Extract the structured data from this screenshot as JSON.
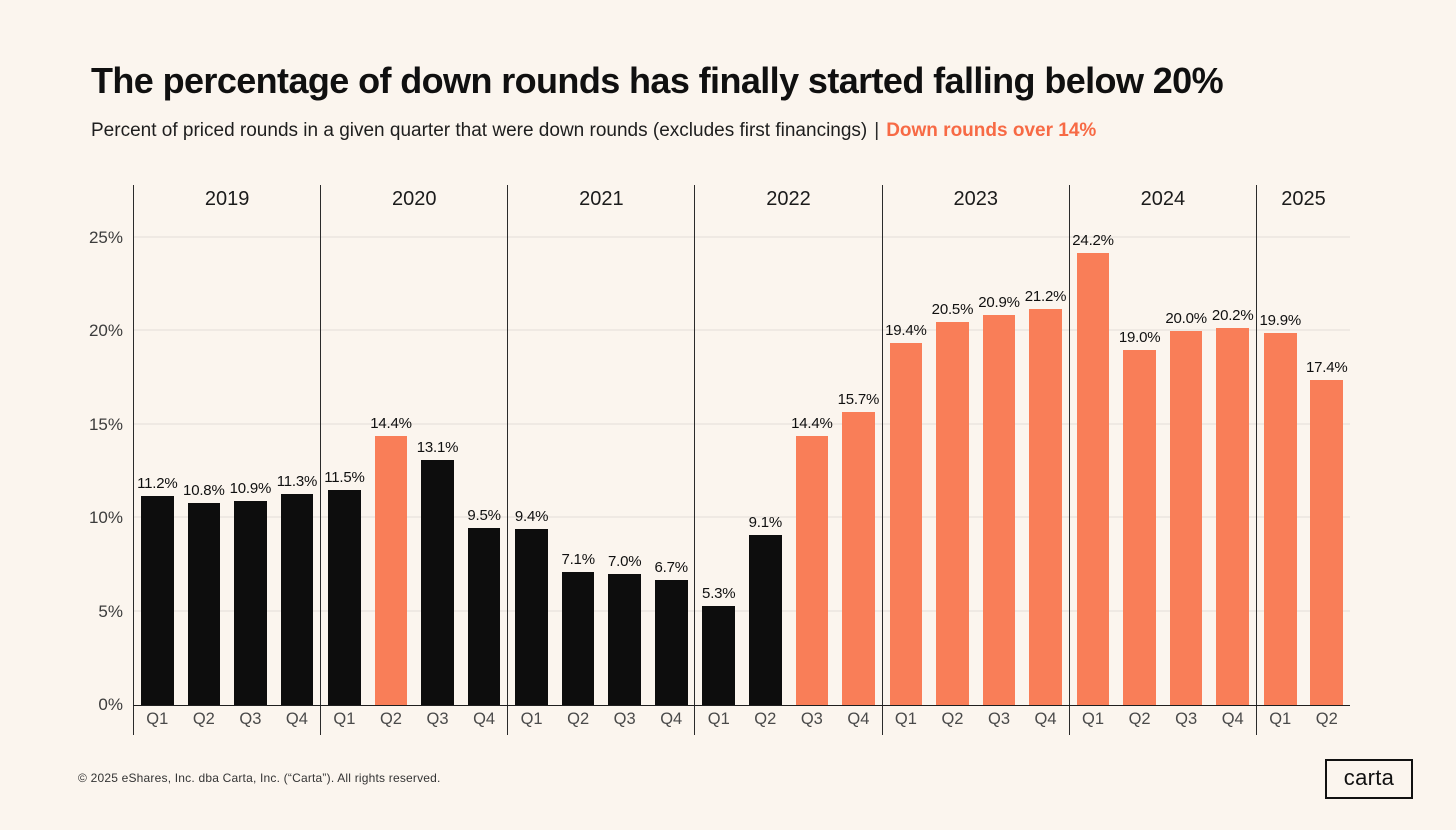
{
  "header": {
    "title": "The percentage of down rounds has finally started falling below 20%",
    "subtitle": "Percent of priced rounds in a given quarter that were down rounds (excludes first financings)",
    "separator": "|",
    "subtitle_highlight": "Down rounds over 14%"
  },
  "chart_data": {
    "type": "bar",
    "title": "The percentage of down rounds has finally started falling below 20%",
    "xlabel": "",
    "ylabel": "",
    "ylim": [
      0,
      27.8
    ],
    "ytick_labels": [
      "0%",
      "5%",
      "10%",
      "15%",
      "20%",
      "25%"
    ],
    "ytick_values": [
      0,
      5,
      10,
      15,
      20,
      25
    ],
    "grid": true,
    "highlight_rule": "bars over 14% shown in orange",
    "highlight_threshold": 14,
    "series": [
      {
        "year": "2019",
        "categories": [
          "Q1",
          "Q2",
          "Q3",
          "Q4"
        ],
        "values": [
          11.2,
          10.8,
          10.9,
          11.3
        ],
        "labels": [
          "11.2%",
          "10.8%",
          "10.9%",
          "11.3%"
        ]
      },
      {
        "year": "2020",
        "categories": [
          "Q1",
          "Q2",
          "Q3",
          "Q4"
        ],
        "values": [
          11.5,
          14.4,
          13.1,
          9.5
        ],
        "labels": [
          "11.5%",
          "14.4%",
          "13.1%",
          "9.5%"
        ]
      },
      {
        "year": "2021",
        "categories": [
          "Q1",
          "Q2",
          "Q3",
          "Q4"
        ],
        "values": [
          9.4,
          7.1,
          7.0,
          6.7
        ],
        "labels": [
          "9.4%",
          "7.1%",
          "7.0%",
          "6.7%"
        ]
      },
      {
        "year": "2022",
        "categories": [
          "Q1",
          "Q2",
          "Q3",
          "Q4"
        ],
        "values": [
          5.3,
          9.1,
          14.4,
          15.7
        ],
        "labels": [
          "5.3%",
          "9.1%",
          "14.4%",
          "15.7%"
        ]
      },
      {
        "year": "2023",
        "categories": [
          "Q1",
          "Q2",
          "Q3",
          "Q4"
        ],
        "values": [
          19.4,
          20.5,
          20.9,
          21.2
        ],
        "labels": [
          "19.4%",
          "20.5%",
          "20.9%",
          "21.2%"
        ]
      },
      {
        "year": "2024",
        "categories": [
          "Q1",
          "Q2",
          "Q3",
          "Q4"
        ],
        "values": [
          24.2,
          19.0,
          20.0,
          20.2
        ],
        "labels": [
          "24.2%",
          "19.0%",
          "20.0%",
          "20.2%"
        ]
      },
      {
        "year": "2025",
        "categories": [
          "Q1",
          "Q2"
        ],
        "values": [
          19.9,
          17.4
        ],
        "labels": [
          "19.9%",
          "17.4%"
        ]
      }
    ],
    "colors": {
      "background": "#FBF5EE",
      "bar_default": "#0D0D0D",
      "bar_highlight": "#F97E58",
      "accent_text": "#F76A45",
      "grid": "#EFE9E3",
      "axis": "#2B2B2B"
    }
  },
  "footer": {
    "copyright": "© 2025 eShares, Inc. dba Carta, Inc. (“Carta”). All rights reserved.",
    "logo_text": "carta"
  }
}
